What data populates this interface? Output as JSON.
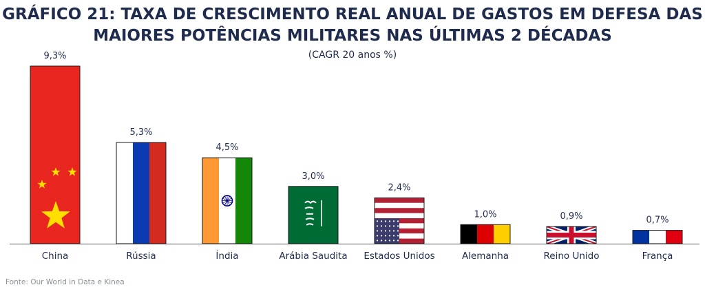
{
  "chart_data": {
    "type": "bar",
    "title_line1": "GRÁFICO 21: TAXA DE CRESCIMENTO REAL ANUAL DE GASTOS EM DEFESA DAS",
    "title_line2": "MAIORES POTÊNCIAS MILITARES NAS ÚLTIMAS 2 DÉCADAS",
    "subtitle": "(CAGR 20 anos %)",
    "categories": [
      "China",
      "Rússia",
      "Índia",
      "Arábia Saudita",
      "Estados Unidos",
      "Alemanha",
      "Reino Unido",
      "França"
    ],
    "values": [
      9.3,
      5.3,
      4.5,
      3.0,
      2.4,
      1.0,
      0.9,
      0.7
    ],
    "data_labels": [
      "9,3%",
      "5,3%",
      "4,5%",
      "3,0%",
      "2,4%",
      "1,0%",
      "0,9%",
      "0,7%"
    ],
    "bar_styles": [
      "flag-china",
      "flag-russia",
      "flag-india",
      "flag-saudi-arabia",
      "flag-usa",
      "flag-germany",
      "flag-uk",
      "flag-france"
    ],
    "ylim": [
      0,
      9.3
    ],
    "grid": false,
    "legend": "none"
  },
  "source": "Fonte: Our World in Data e Kinea",
  "colors": {
    "title": "#1f2b4d",
    "axis": "#555555",
    "source": "#8a8f99"
  }
}
